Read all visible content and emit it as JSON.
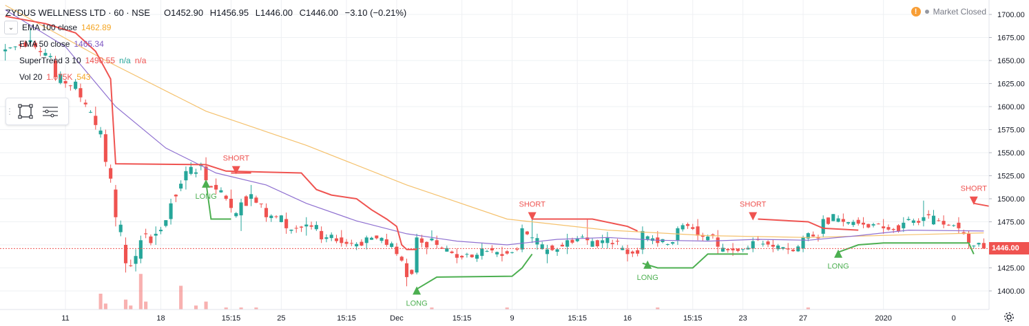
{
  "header": {
    "symbol": "ZYDUS WELLNESS LTD · 60 · NSE",
    "open": "O1452.90",
    "high": "H1456.95",
    "low": "L1446.00",
    "close": "C1446.00",
    "change": "−3.10 (−0.21%)"
  },
  "indicators": [
    {
      "name": "EMA 100 close",
      "value": "1462.89",
      "color": "#f5b041"
    },
    {
      "name": "EMA 50 close",
      "value": "1465.34",
      "color": "#7e57c2"
    },
    {
      "name": "SuperTrend 3 10",
      "value": "1490.55",
      "extra1": "n/a",
      "extra2": "n/a",
      "color": "#ef5350",
      "extra_color": "#26a69a"
    },
    {
      "name": "Vol 20",
      "value": "1.075K",
      "extra1": "543",
      "color": "#ef5350",
      "extra_color": "#f5a623"
    }
  ],
  "status": {
    "label": "Market Closed",
    "warning_glyph": "!"
  },
  "last_price": "1446.00",
  "icons": {
    "toolbox": [
      "grip-icon",
      "rectangle-icon",
      "list-icon"
    ],
    "settings": "gear-icon",
    "collapse": "chevron-down-icon"
  },
  "colors": {
    "up": "#26a69a",
    "down": "#ef5350",
    "ema100": "#f5c16c",
    "ema50": "#8e6fd0",
    "st_down": "#ef5350",
    "st_up": "#4caf50",
    "grid": "#eef0f3",
    "axis_text": "#131722"
  },
  "chart_data": {
    "type": "candlestick",
    "timeframe": "60",
    "ylim": [
      1395,
      1710
    ],
    "y_ticks": [
      1400,
      1425,
      1450,
      1475,
      1500,
      1525,
      1550,
      1575,
      1600,
      1625,
      1650,
      1675,
      1700
    ],
    "y_tick_labels": [
      "1400.00",
      "1425.00",
      "1450.00",
      "1475.00",
      "1500.00",
      "1525.00",
      "1550.00",
      "1575.00",
      "1600.00",
      "1625.00",
      "1650.00",
      "1675.00",
      "1700.00"
    ],
    "x_tick_labels": [
      "11",
      "18",
      "15:15",
      "25",
      "15:15",
      "Dec",
      "15:15",
      "9",
      "15:15",
      "16",
      "15:15",
      "23",
      "27",
      "2020",
      "0"
    ],
    "bars_total": 196,
    "x_tick_bars": [
      12,
      31,
      45,
      55,
      68,
      78,
      91,
      101,
      114,
      124,
      137,
      147,
      159,
      175,
      189
    ],
    "ohlc_anchors": [
      [
        0,
        1660,
        1668,
        1650,
        1662
      ],
      [
        5,
        1670,
        1685,
        1665,
        1672
      ],
      [
        10,
        1650,
        1655,
        1628,
        1632
      ],
      [
        15,
        1620,
        1625,
        1605,
        1610
      ],
      [
        18,
        1590,
        1600,
        1575,
        1580
      ],
      [
        20,
        1570,
        1575,
        1535,
        1540
      ],
      [
        22,
        1510,
        1515,
        1470,
        1480
      ],
      [
        24,
        1450,
        1458,
        1420,
        1430
      ],
      [
        27,
        1435,
        1460,
        1430,
        1455
      ],
      [
        30,
        1460,
        1470,
        1450,
        1462
      ],
      [
        33,
        1478,
        1500,
        1472,
        1495
      ],
      [
        36,
        1520,
        1535,
        1510,
        1530
      ],
      [
        40,
        1535,
        1545,
        1520,
        1520
      ],
      [
        42,
        1515,
        1522,
        1505,
        1510
      ],
      [
        45,
        1500,
        1510,
        1485,
        1490
      ],
      [
        47,
        1482,
        1500,
        1465,
        1496
      ],
      [
        49,
        1500,
        1515,
        1492,
        1505
      ],
      [
        52,
        1490,
        1495,
        1475,
        1480
      ],
      [
        56,
        1478,
        1485,
        1462,
        1468
      ],
      [
        60,
        1470,
        1480,
        1460,
        1472
      ],
      [
        63,
        1465,
        1470,
        1452,
        1456
      ],
      [
        67,
        1458,
        1466,
        1448,
        1452
      ],
      [
        72,
        1452,
        1460,
        1445,
        1458
      ],
      [
        76,
        1456,
        1462,
        1448,
        1450
      ],
      [
        78,
        1448,
        1452,
        1438,
        1440
      ],
      [
        80,
        1430,
        1435,
        1405,
        1415
      ],
      [
        82,
        1420,
        1462,
        1418,
        1458
      ],
      [
        86,
        1455,
        1460,
        1446,
        1450
      ],
      [
        90,
        1440,
        1446,
        1430,
        1436
      ],
      [
        95,
        1438,
        1452,
        1434,
        1446
      ],
      [
        99,
        1440,
        1448,
        1432,
        1438
      ],
      [
        103,
        1445,
        1472,
        1442,
        1468
      ],
      [
        105,
        1458,
        1480,
        1452,
        1458
      ],
      [
        108,
        1440,
        1450,
        1430,
        1445
      ],
      [
        112,
        1448,
        1462,
        1440,
        1455
      ],
      [
        116,
        1458,
        1478,
        1450,
        1455
      ],
      [
        120,
        1452,
        1464,
        1446,
        1458
      ],
      [
        124,
        1445,
        1450,
        1432,
        1440
      ],
      [
        127,
        1445,
        1470,
        1440,
        1465
      ],
      [
        130,
        1458,
        1465,
        1448,
        1452
      ],
      [
        134,
        1455,
        1470,
        1450,
        1468
      ],
      [
        138,
        1470,
        1478,
        1455,
        1460
      ],
      [
        142,
        1458,
        1466,
        1440,
        1448
      ],
      [
        145,
        1446,
        1452,
        1438,
        1444
      ],
      [
        149,
        1446,
        1458,
        1442,
        1454
      ],
      [
        153,
        1450,
        1456,
        1442,
        1448
      ],
      [
        156,
        1446,
        1452,
        1440,
        1445
      ],
      [
        159,
        1446,
        1460,
        1442,
        1458
      ],
      [
        163,
        1462,
        1482,
        1458,
        1478
      ],
      [
        167,
        1478,
        1484,
        1470,
        1475
      ],
      [
        171,
        1474,
        1480,
        1468,
        1472
      ],
      [
        175,
        1470,
        1478,
        1462,
        1468
      ],
      [
        179,
        1468,
        1480,
        1464,
        1474
      ],
      [
        183,
        1476,
        1498,
        1470,
        1480
      ],
      [
        187,
        1476,
        1482,
        1468,
        1472
      ],
      [
        190,
        1474,
        1480,
        1462,
        1468
      ],
      [
        192,
        1462,
        1465,
        1446,
        1452
      ],
      [
        195,
        1452,
        1457,
        1446,
        1446
      ]
    ],
    "series": [
      {
        "name": "EMA 100 close",
        "type": "line",
        "points": [
          [
            0,
            1710
          ],
          [
            20,
            1650
          ],
          [
            40,
            1595
          ],
          [
            60,
            1558
          ],
          [
            80,
            1515
          ],
          [
            100,
            1478
          ],
          [
            120,
            1466
          ],
          [
            140,
            1460
          ],
          [
            160,
            1458
          ],
          [
            180,
            1461
          ],
          [
            195,
            1463
          ]
        ]
      },
      {
        "name": "EMA 50 close",
        "type": "line",
        "points": [
          [
            0,
            1705
          ],
          [
            12,
            1665
          ],
          [
            22,
            1600
          ],
          [
            32,
            1555
          ],
          [
            42,
            1528
          ],
          [
            52,
            1515
          ],
          [
            60,
            1495
          ],
          [
            70,
            1476
          ],
          [
            80,
            1462
          ],
          [
            90,
            1454
          ],
          [
            100,
            1450
          ],
          [
            110,
            1456
          ],
          [
            120,
            1458
          ],
          [
            130,
            1455
          ],
          [
            140,
            1454
          ],
          [
            150,
            1456
          ],
          [
            160,
            1455
          ],
          [
            170,
            1460
          ],
          [
            180,
            1466
          ],
          [
            195,
            1465
          ]
        ]
      },
      {
        "name": "SuperTrend 3 10",
        "type": "step",
        "segments": [
          {
            "dir": "down",
            "points": [
              [
                0,
                1698
              ],
              [
                8,
                1690
              ],
              [
                14,
                1680
              ],
              [
                18,
                1660
              ],
              [
                21,
                1630
              ],
              [
                22,
                1538
              ],
              [
                40,
                1537
              ],
              [
                44,
                1530
              ],
              [
                59,
                1528
              ],
              [
                62,
                1510
              ],
              [
                65,
                1504
              ],
              [
                70,
                1500
              ],
              [
                73,
                1488
              ],
              [
                76,
                1478
              ],
              [
                78,
                1470
              ],
              [
                79,
                1450
              ],
              [
                80,
                1445
              ],
              [
                82,
                1445
              ]
            ]
          },
          {
            "dir": "up",
            "points": [
              [
                40,
                1518
              ],
              [
                41,
                1478
              ],
              [
                45,
                1478
              ]
            ]
          },
          {
            "dir": "down",
            "points": [
              [
                45,
                1528
              ],
              [
                49,
                1528
              ]
            ]
          },
          {
            "dir": "up",
            "points": [
              [
                82,
                1402
              ],
              [
                86,
                1415
              ],
              [
                101,
                1416
              ],
              [
                103,
                1425
              ],
              [
                105,
                1440
              ]
            ]
          },
          {
            "dir": "down",
            "points": [
              [
                105,
                1478
              ],
              [
                117,
                1478
              ],
              [
                124,
                1470
              ],
              [
                126,
                1465
              ]
            ]
          },
          {
            "dir": "up",
            "points": [
              [
                127,
                1430
              ],
              [
                130,
                1425
              ],
              [
                137,
                1425
              ],
              [
                140,
                1440
              ],
              [
                148,
                1440
              ]
            ]
          },
          {
            "dir": "down",
            "points": [
              [
                150,
                1478
              ],
              [
                160,
                1475
              ],
              [
                163,
                1468
              ],
              [
                170,
                1466
              ]
            ]
          },
          {
            "dir": "up",
            "points": [
              [
                166,
                1442
              ],
              [
                170,
                1450
              ],
              [
                175,
                1452
              ],
              [
                192,
                1452
              ],
              [
                193,
                1440
              ]
            ]
          },
          {
            "dir": "down",
            "points": [
              [
                193,
                1495
              ],
              [
                196,
                1492
              ]
            ]
          }
        ]
      }
    ],
    "signals": [
      {
        "label": "LONG",
        "type": "long",
        "bar": 40,
        "price": 1518
      },
      {
        "label": "SHORT",
        "type": "short",
        "bar": 46,
        "price": 1528
      },
      {
        "label": "LONG",
        "type": "long",
        "bar": 82,
        "price": 1402
      },
      {
        "label": "SHORT",
        "type": "short",
        "bar": 105,
        "price": 1478
      },
      {
        "label": "LONG",
        "type": "long",
        "bar": 128,
        "price": 1430
      },
      {
        "label": "SHORT",
        "type": "short",
        "bar": 149,
        "price": 1478
      },
      {
        "label": "LONG",
        "type": "long",
        "bar": 166,
        "price": 1442
      },
      {
        "label": "SHORT",
        "type": "short",
        "bar": 193,
        "price": 1495
      }
    ],
    "volume_anchors": [
      [
        19,
        8
      ],
      [
        20,
        3
      ],
      [
        24,
        5
      ],
      [
        25,
        2
      ],
      [
        27,
        18
      ],
      [
        28,
        4
      ],
      [
        35,
        12
      ],
      [
        38,
        2
      ],
      [
        40,
        4
      ],
      [
        44,
        1
      ],
      [
        47,
        1
      ],
      [
        50,
        1
      ],
      [
        85,
        1
      ],
      [
        100,
        1
      ],
      [
        130,
        1
      ],
      [
        160,
        1
      ]
    ],
    "volume_scale_max": 40,
    "last_price": 1446
  }
}
